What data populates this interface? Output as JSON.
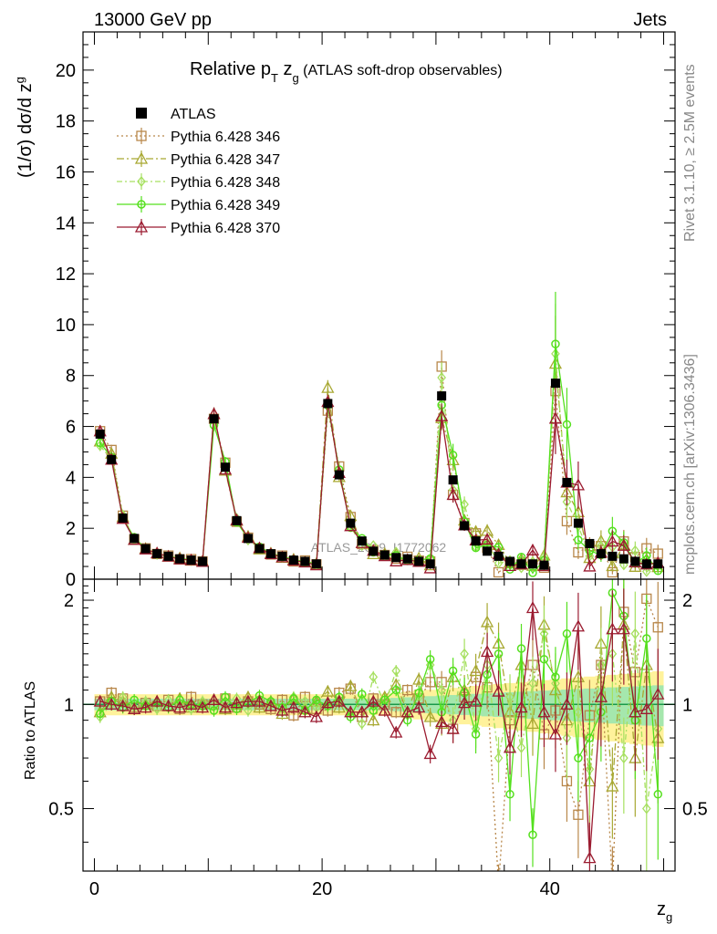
{
  "header": {
    "left": "13000 GeV pp",
    "right": "Jets"
  },
  "side_labels": {
    "rivet": "Rivet 3.1.10, ≥ 2.5M events",
    "mcplots": "mcplots.cern.ch [arXiv:1306.3436]"
  },
  "watermark": "ATLAS_2019_I1772062",
  "chart_data": {
    "type": "scatter",
    "title": {
      "main": "Relative p",
      "sub": "T",
      "var": " z",
      "varsub": "g",
      "rest": " (ATLAS soft-drop observables)"
    },
    "ylabel": "(1/σ) dσ/d z",
    "ylabel_sub": "g",
    "xlabel": "z",
    "xlabel_sub": "g",
    "ratio_ylabel": "Ratio to ATLAS",
    "xlim": [
      -1,
      51
    ],
    "ylim": [
      0,
      21.5
    ],
    "ratio_ylim": [
      0.33,
      2.3
    ],
    "main_yticks": [
      0,
      2,
      4,
      6,
      8,
      10,
      12,
      14,
      16,
      18,
      20
    ],
    "ratio_yticks": [
      0.5,
      1,
      2
    ],
    "xticks": [
      0,
      20,
      40
    ],
    "x": [
      0.5,
      1.5,
      2.5,
      3.5,
      4.5,
      5.5,
      6.5,
      7.5,
      8.5,
      9.5,
      10.5,
      11.5,
      12.5,
      13.5,
      14.5,
      15.5,
      16.5,
      17.5,
      18.5,
      19.5,
      20.5,
      21.5,
      22.5,
      23.5,
      24.5,
      25.5,
      26.5,
      27.5,
      28.5,
      29.5,
      30.5,
      31.5,
      32.5,
      33.5,
      34.5,
      35.5,
      36.5,
      37.5,
      38.5,
      39.5,
      40.5,
      41.5,
      42.5,
      43.5,
      44.5,
      45.5,
      46.5,
      47.5,
      48.5,
      49.5
    ],
    "atlas": [
      5.7,
      4.7,
      2.4,
      1.6,
      1.2,
      1.0,
      0.9,
      0.8,
      0.75,
      0.7,
      6.3,
      4.4,
      2.3,
      1.6,
      1.2,
      1.0,
      0.9,
      0.75,
      0.7,
      0.6,
      6.9,
      4.1,
      2.2,
      1.5,
      1.1,
      0.95,
      0.85,
      0.8,
      0.7,
      0.6,
      7.2,
      3.9,
      2.1,
      1.5,
      1.1,
      0.9,
      0.7,
      0.6,
      0.6,
      0.55,
      7.7,
      3.8,
      2.2,
      1.4,
      1.0,
      0.9,
      0.8,
      0.7,
      0.6,
      0.6
    ],
    "series": [
      {
        "name": "Pythia 6.428 346",
        "color": "#B8874A",
        "marker": "square",
        "dash": "2,3",
        "ratio": [
          1.02,
          1.08,
          1.04,
          0.98,
          1.01,
          0.99,
          1.03,
          0.97,
          1.05,
          1.0,
          1.0,
          1.04,
          0.98,
          1.02,
          1.0,
          0.97,
          1.03,
          0.93,
          1.05,
          0.97,
          0.96,
          1.08,
          1.11,
          0.92,
          1.04,
          1.0,
          0.95,
          1.1,
          1.04,
          1.16,
          1.16,
          0.85,
          1.05,
          1.2,
          1.12,
          0.3,
          0.9,
          0.95,
          1.3,
          0.82,
          0.96,
          0.6,
          0.48,
          0.93,
          1.3,
          0.3,
          1.85,
          1.24,
          2.02,
          1.67
        ]
      },
      {
        "name": "Pythia 6.428 347",
        "color": "#A8A832",
        "marker": "triangle",
        "dash": "8,3,2,3",
        "ratio": [
          0.95,
          1.05,
          1.02,
          0.97,
          1.0,
          1.02,
          0.99,
          1.04,
          0.98,
          1.01,
          1.03,
          0.97,
          1.0,
          1.05,
          0.98,
          1.02,
          0.94,
          1.04,
          0.97,
          1.02,
          1.09,
          0.98,
          1.13,
          0.95,
          0.9,
          1.05,
          1.14,
          0.95,
          1.18,
          0.92,
          0.88,
          1.2,
          1.1,
          1.25,
          1.73,
          1.5,
          0.95,
          1.3,
          0.88,
          1.7,
          1.1,
          0.9,
          1.2,
          0.6,
          1.5,
          0.58,
          1.7,
          0.7,
          1.3,
          0.8
        ]
      },
      {
        "name": "Pythia 6.428 348",
        "color": "#A6E060",
        "marker": "diamond",
        "dash": "6,3,2,3",
        "ratio": [
          0.92,
          1.0,
          1.05,
          0.98,
          1.02,
          0.97,
          1.03,
          1.0,
          0.97,
          1.02,
          0.99,
          1.01,
          1.04,
          0.96,
          1.03,
          1.0,
          0.95,
          1.05,
          1.02,
          0.98,
          1.0,
          1.03,
          0.94,
          0.88,
          1.2,
          1.0,
          1.25,
          0.95,
          1.05,
          1.3,
          1.1,
          0.9,
          1.4,
          0.85,
          1.3,
          0.7,
          1.05,
          0.75,
          1.15,
          1.6,
          1.15,
          0.8,
          0.95,
          0.65,
          1.3,
          1.4,
          0.7,
          1.6,
          0.5,
          0.85
        ]
      },
      {
        "name": "Pythia 6.428 349",
        "color": "#55E01E",
        "marker": "circle",
        "dash": "",
        "ratio": [
          0.94,
          1.02,
          0.98,
          1.03,
          0.99,
          1.01,
          0.98,
          1.03,
          1.0,
          0.99,
          0.96,
          1.05,
          0.97,
          1.01,
          1.06,
          1.02,
          0.98,
          1.04,
          0.96,
          1.03,
          0.99,
          1.05,
          0.92,
          1.07,
          0.96,
          1.03,
          1.1,
          0.9,
          1.08,
          1.35,
          0.95,
          1.25,
          1.08,
          0.82,
          1.22,
          1.4,
          0.55,
          1.45,
          0.42,
          1.35,
          1.2,
          1.6,
          0.7,
          0.8,
          0.95,
          2.1,
          1.8,
          0.9,
          1.55,
          0.55
        ]
      },
      {
        "name": "Pythia 6.428 370",
        "color": "#9B1B30",
        "marker": "triangle-open",
        "dash": "",
        "ratio": [
          1.02,
          1.0,
          0.99,
          0.97,
          0.98,
          1.02,
          0.99,
          0.98,
          1.0,
          0.98,
          1.03,
          0.98,
          1.01,
          1.02,
          1.02,
          0.99,
          0.96,
          0.98,
          0.95,
          0.92,
          1.01,
          1.02,
          0.95,
          0.95,
          1.02,
          0.96,
          0.83,
          0.95,
          0.98,
          0.72,
          0.89,
          0.85,
          1.01,
          1.02,
          1.42,
          1.09,
          0.75,
          0.98,
          1.9,
          0.95,
          0.82,
          1.0,
          1.68,
          0.36,
          1.05,
          1.65,
          1.65,
          0.95,
          0.97,
          1.07
        ]
      }
    ]
  }
}
